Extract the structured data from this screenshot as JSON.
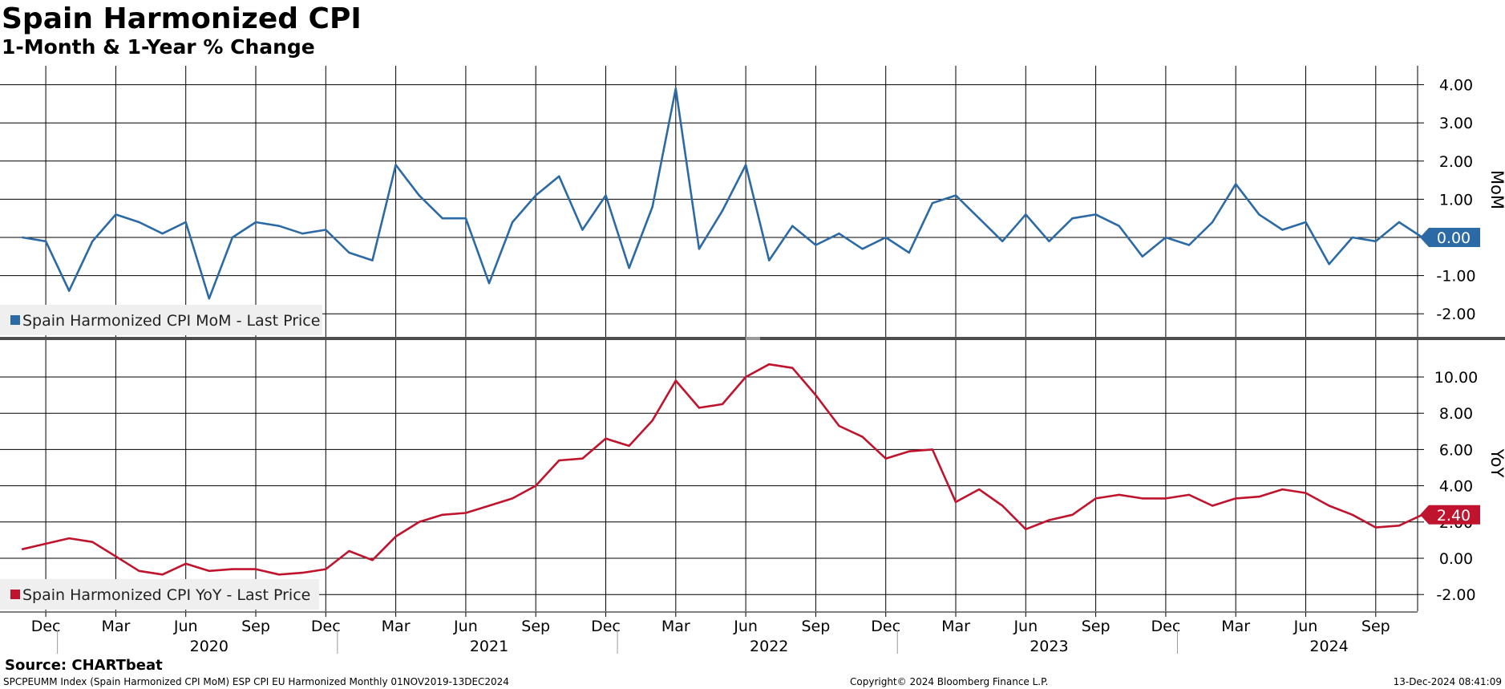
{
  "header": {
    "title": "Spain Harmonized CPI",
    "subtitle": "1-Month & 1-Year % Change"
  },
  "footer": {
    "source": "Source: CHARTbeat",
    "ticker_info": "SPCPEUMM Index (Spain Harmonized CPI MoM) ESP CPI EU Harmonized  Monthly 01NOV2019-13DEC2024",
    "copyright": "Copyright© 2024 Bloomberg Finance L.P.",
    "timestamp": "13-Dec-2024 08:41:09"
  },
  "colors": {
    "mom": "#2c6aa6",
    "yoy": "#c0142e",
    "grid": "#000000",
    "legend_bg": "#efefef"
  },
  "chart_data": [
    {
      "type": "line",
      "x_start": "2019-11",
      "x_end": "2024-11",
      "x_month_labels": [
        "Dec",
        "Mar",
        "Jun",
        "Sep",
        "Dec",
        "Mar",
        "Jun",
        "Sep",
        "Dec",
        "Mar",
        "Jun",
        "Sep",
        "Dec",
        "Mar",
        "Jun",
        "Sep",
        "Dec",
        "Mar",
        "Jun",
        "Sep"
      ],
      "x_year_labels": [
        "2020",
        "2021",
        "2022",
        "2023",
        "2024"
      ],
      "ylabel": "MoM",
      "ylim": [
        -2.6,
        4.5
      ],
      "yticks": [
        "-2.00",
        "-1.00",
        "0.00",
        "1.00",
        "2.00",
        "3.00",
        "4.00"
      ],
      "ytick_values": [
        -2,
        -1,
        0,
        1,
        2,
        3,
        4
      ],
      "grid": true,
      "legend_position": "bottom-left",
      "last_value_label": "0.00",
      "series": [
        {
          "name": "Spain Harmonized CPI MoM - Last Price",
          "values": [
            0.0,
            -0.1,
            -1.4,
            -0.1,
            0.6,
            0.4,
            0.1,
            0.4,
            -1.6,
            0.0,
            0.4,
            0.3,
            0.1,
            0.2,
            -0.4,
            -0.6,
            1.9,
            1.1,
            0.5,
            0.5,
            -1.2,
            0.4,
            1.1,
            1.6,
            0.2,
            1.1,
            -0.8,
            0.8,
            3.9,
            -0.3,
            0.7,
            1.9,
            -0.6,
            0.3,
            -0.2,
            0.1,
            -0.3,
            0.0,
            -0.4,
            0.9,
            1.1,
            0.5,
            -0.1,
            0.6,
            -0.1,
            0.5,
            0.6,
            0.3,
            -0.5,
            0.0,
            -0.2,
            0.4,
            1.4,
            0.6,
            0.2,
            0.4,
            -0.7,
            0.0,
            -0.1,
            0.4,
            0.0
          ]
        }
      ]
    },
    {
      "type": "line",
      "x_start": "2019-11",
      "x_end": "2024-11",
      "ylabel": "YoY",
      "ylim": [
        -2.8,
        11.0
      ],
      "yticks": [
        "-2.00",
        "0.00",
        "2.00",
        "4.00",
        "6.00",
        "8.00",
        "10.00"
      ],
      "ytick_values": [
        -2,
        0,
        2,
        4,
        6,
        8,
        10
      ],
      "grid": true,
      "legend_position": "bottom-left",
      "last_value_label": "2.40",
      "series": [
        {
          "name": "Spain Harmonized CPI YoY - Last Price",
          "values": [
            0.5,
            0.8,
            1.1,
            0.9,
            0.1,
            -0.7,
            -0.9,
            -0.3,
            -0.7,
            -0.6,
            -0.6,
            -0.9,
            -0.8,
            -0.6,
            0.4,
            -0.1,
            1.2,
            2.0,
            2.4,
            2.5,
            2.9,
            3.3,
            4.0,
            5.4,
            5.5,
            6.6,
            6.2,
            7.6,
            9.8,
            8.3,
            8.5,
            10.0,
            10.7,
            10.5,
            9.0,
            7.3,
            6.7,
            5.5,
            5.9,
            6.0,
            3.1,
            3.8,
            2.9,
            1.6,
            2.1,
            2.4,
            3.3,
            3.5,
            3.3,
            3.3,
            3.5,
            2.9,
            3.3,
            3.4,
            3.8,
            3.6,
            2.9,
            2.4,
            1.7,
            1.8,
            2.4
          ]
        }
      ]
    }
  ]
}
